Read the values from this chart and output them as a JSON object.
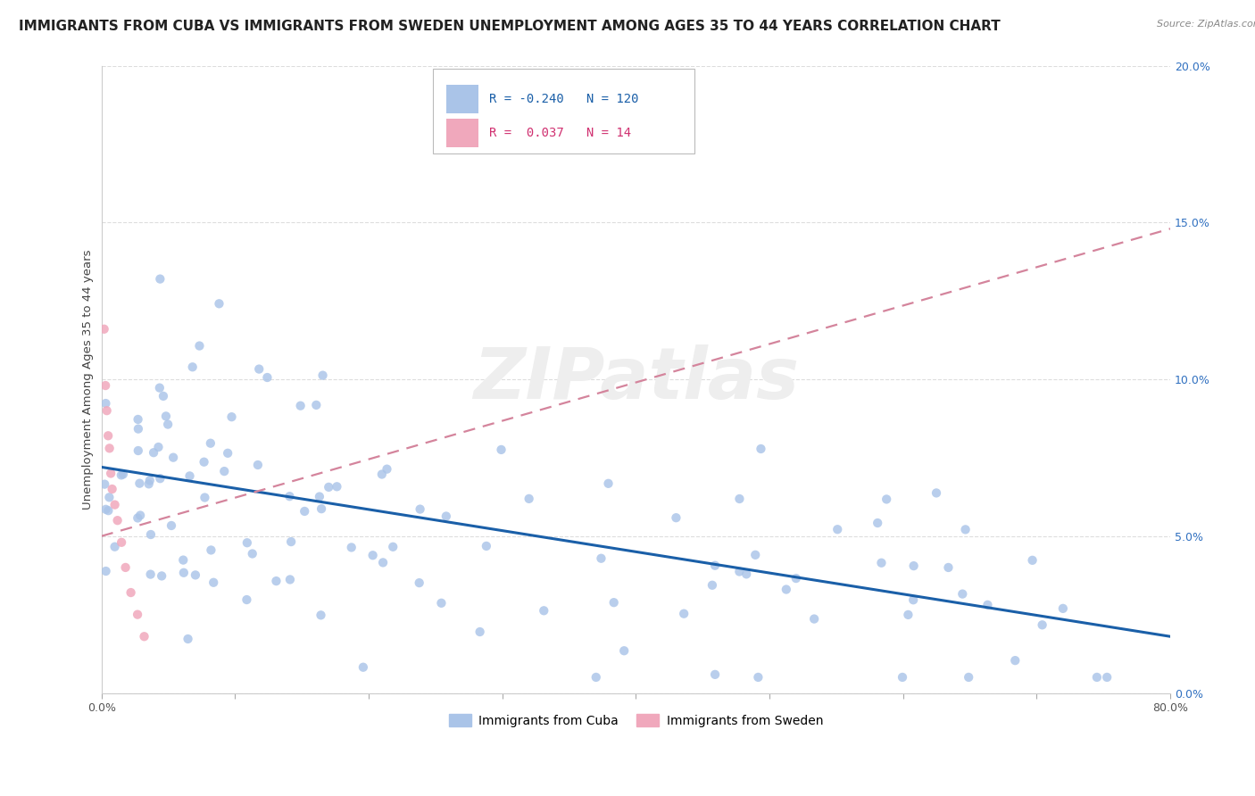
{
  "title": "IMMIGRANTS FROM CUBA VS IMMIGRANTS FROM SWEDEN UNEMPLOYMENT AMONG AGES 35 TO 44 YEARS CORRELATION CHART",
  "source": "Source: ZipAtlas.com",
  "ylabel": "Unemployment Among Ages 35 to 44 years",
  "xlabel_cuba": "Immigrants from Cuba",
  "xlabel_sweden": "Immigrants from Sweden",
  "cuba_color": "#aac4e8",
  "sweden_color": "#f0a8bc",
  "cuba_line_color": "#1a5fa8",
  "sweden_line_color": "#d4849c",
  "R_cuba": -0.24,
  "N_cuba": 120,
  "R_sweden": 0.037,
  "N_sweden": 14,
  "xlim": [
    0.0,
    0.8
  ],
  "ylim": [
    0.0,
    0.2
  ],
  "xtick_positions": [
    0.0,
    0.1,
    0.2,
    0.3,
    0.4,
    0.5,
    0.6,
    0.7,
    0.8
  ],
  "ytick_positions": [
    0.0,
    0.05,
    0.1,
    0.15,
    0.2
  ],
  "xticklabels": [
    "0.0%",
    "",
    "",
    "",
    "",
    "",
    "",
    "",
    "80.0%"
  ],
  "yticklabels_right": [
    "0.0%",
    "5.0%",
    "10.0%",
    "15.0%",
    "20.0%"
  ],
  "cuba_trend_x": [
    0.0,
    0.8
  ],
  "cuba_trend_y": [
    0.072,
    0.018
  ],
  "sweden_trend_x": [
    0.0,
    0.8
  ],
  "sweden_trend_y": [
    0.05,
    0.148
  ],
  "background_color": "#ffffff",
  "grid_color": "#dddddd",
  "watermark": "ZIPatlas",
  "title_fontsize": 11,
  "source_fontsize": 8,
  "axis_label_fontsize": 9.5,
  "tick_fontsize": 9,
  "legend_fontsize": 10,
  "right_tick_color": "#3070c0"
}
